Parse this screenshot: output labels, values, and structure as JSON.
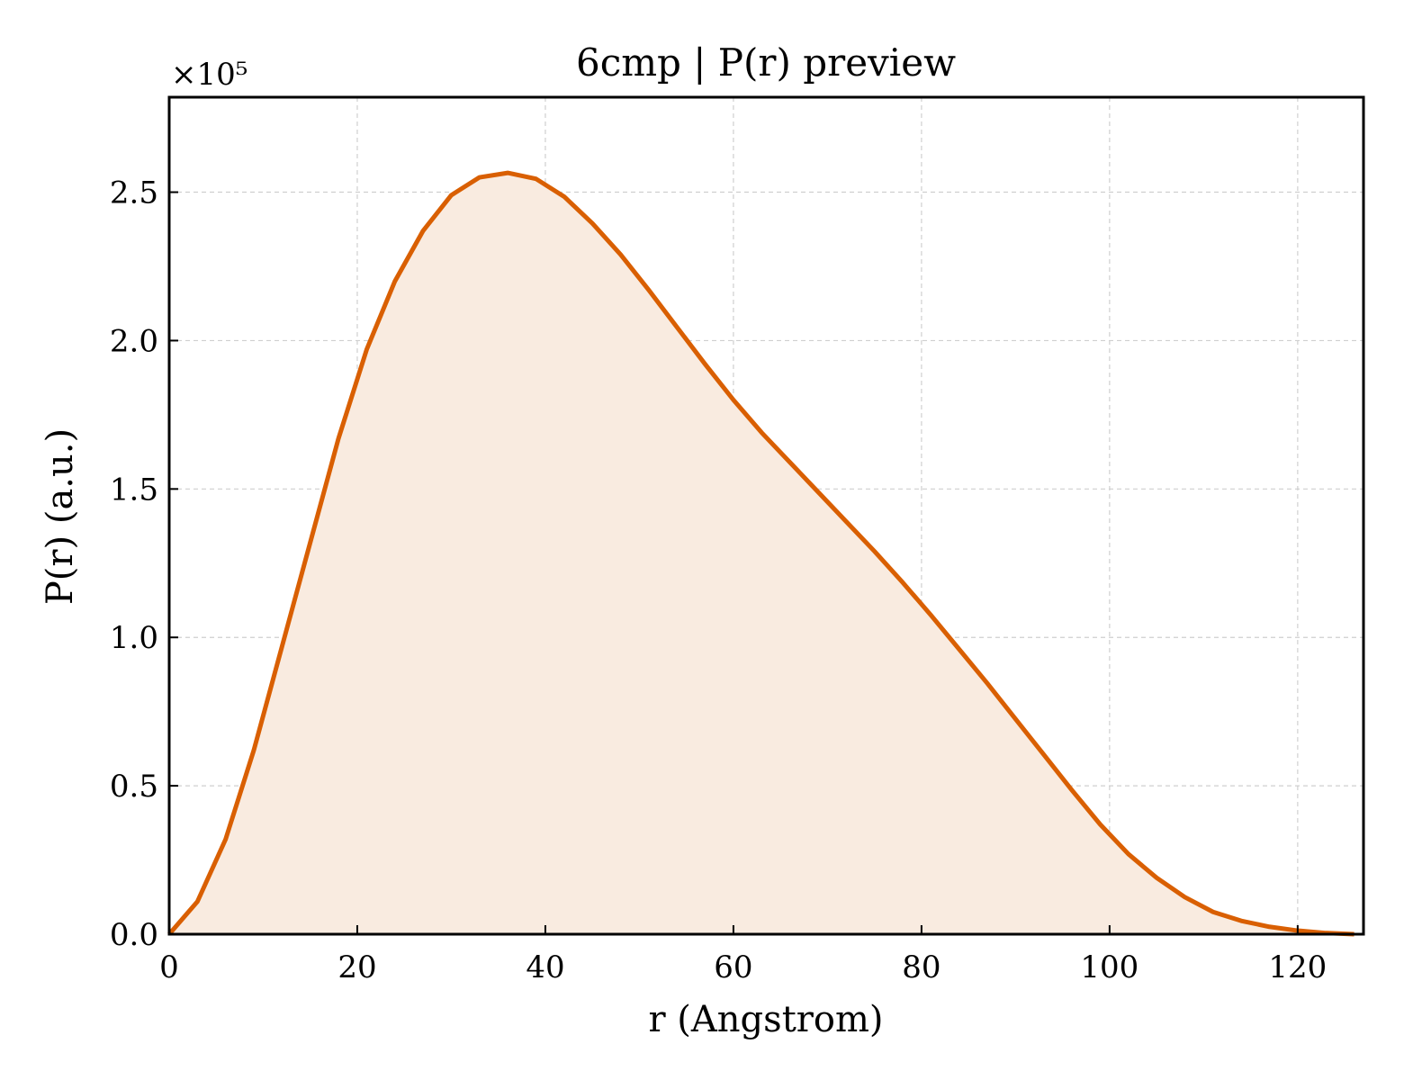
{
  "chart_data": {
    "type": "area",
    "title": "6cmp | P(r) preview",
    "xlabel": "r (Angstrom)",
    "ylabel": "P(r) (a.u.)",
    "y_multiplier_label": "×10⁵",
    "xlim": [
      0,
      127
    ],
    "ylim": [
      0,
      2.82
    ],
    "xticks": [
      0,
      20,
      40,
      60,
      80,
      100,
      120
    ],
    "xtick_labels": [
      "0",
      "20",
      "40",
      "60",
      "80",
      "100",
      "120"
    ],
    "yticks": [
      0,
      0.5,
      1.0,
      1.5,
      2.0,
      2.5
    ],
    "ytick_labels": [
      "0.0",
      "0.5",
      "1.0",
      "1.5",
      "2.0",
      "2.5"
    ],
    "grid": true,
    "line_color": "#d95f02",
    "fill_color": "#f9ebe0",
    "series": [
      {
        "x": [
          0,
          3,
          6,
          9,
          12,
          15,
          18,
          21,
          24,
          27,
          30,
          33,
          36,
          39,
          42,
          45,
          48,
          51,
          54,
          57,
          60,
          63,
          66,
          69,
          72,
          75,
          78,
          81,
          84,
          87,
          90,
          93,
          96,
          99,
          102,
          105,
          108,
          111,
          114,
          117,
          120,
          123,
          126
        ],
        "y": [
          0,
          0.11,
          0.32,
          0.62,
          0.97,
          1.32,
          1.67,
          1.97,
          2.2,
          2.37,
          2.49,
          2.55,
          2.565,
          2.545,
          2.485,
          2.395,
          2.29,
          2.17,
          2.045,
          1.92,
          1.8,
          1.69,
          1.59,
          1.49,
          1.39,
          1.29,
          1.185,
          1.075,
          0.96,
          0.845,
          0.725,
          0.605,
          0.485,
          0.37,
          0.27,
          0.19,
          0.125,
          0.075,
          0.045,
          0.025,
          0.012,
          0.004,
          0.0
        ]
      }
    ]
  }
}
